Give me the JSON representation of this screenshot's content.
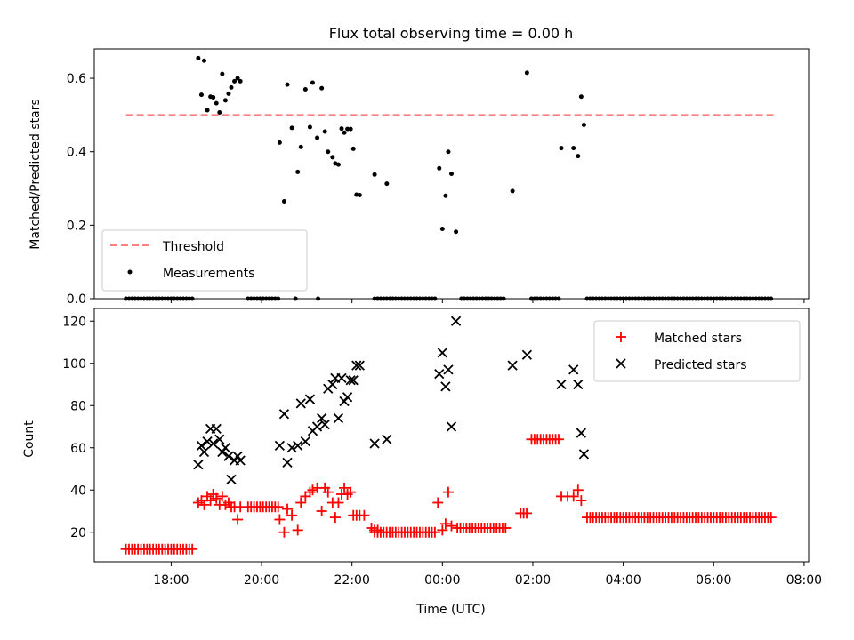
{
  "title": "Flux total observing time = 0.00 h",
  "chart_data": [
    {
      "type": "scatter",
      "ylabel": "Matched/Predicted stars",
      "ylim": [
        0,
        0.68
      ],
      "yticks": [
        "0.0",
        "0.2",
        "0.4",
        "0.6"
      ],
      "ytick_values": [
        0,
        0.2,
        0.4,
        0.6
      ],
      "xlim_hours": [
        16.3,
        32.1
      ],
      "legend_position": "lower-left",
      "threshold": {
        "name": "Threshold",
        "value": 0.5,
        "x_range": [
          17.0,
          31.33
        ],
        "color": "#ff7f7f",
        "style": "dashed"
      },
      "measurements": {
        "name": "Measurements",
        "color": "#000000",
        "x": [
          18.6,
          18.67,
          18.73,
          18.8,
          18.87,
          18.93,
          19.0,
          19.07,
          19.13,
          19.2,
          19.27,
          19.33,
          19.4,
          19.47,
          19.53,
          20.4,
          20.5,
          20.57,
          20.67,
          20.8,
          20.87,
          20.97,
          21.07,
          21.13,
          21.23,
          21.33,
          21.4,
          21.47,
          21.57,
          21.63,
          21.7,
          21.77,
          21.83,
          21.9,
          21.97,
          22.03,
          22.1,
          22.17,
          22.5,
          22.77,
          23.93,
          24.0,
          24.07,
          24.13,
          24.2,
          24.3,
          25.55,
          25.87,
          26.63,
          26.9,
          27.0,
          27.07,
          27.13
        ],
        "y": [
          0.655,
          0.555,
          0.648,
          0.513,
          0.55,
          0.548,
          0.532,
          0.507,
          0.612,
          0.54,
          0.558,
          0.575,
          0.592,
          0.6,
          0.592,
          0.425,
          0.265,
          0.583,
          0.465,
          0.345,
          0.413,
          0.57,
          0.467,
          0.588,
          0.438,
          0.573,
          0.455,
          0.4,
          0.385,
          0.368,
          0.365,
          0.463,
          0.452,
          0.462,
          0.462,
          0.408,
          0.283,
          0.282,
          0.338,
          0.313,
          0.355,
          0.19,
          0.28,
          0.4,
          0.34,
          0.182,
          0.293,
          0.615,
          0.41,
          0.41,
          0.388,
          0.55,
          0.473
        ],
        "zero_segments": [
          [
            17.0,
            18.53
          ],
          [
            19.7,
            20.38
          ],
          [
            20.75,
            20.75
          ],
          [
            21.25,
            21.25
          ],
          [
            22.5,
            23.87
          ],
          [
            24.42,
            25.4
          ],
          [
            25.97,
            26.6
          ],
          [
            27.2,
            31.33
          ]
        ]
      }
    },
    {
      "type": "scatter",
      "xlabel": "Time (UTC)",
      "ylabel": "Count",
      "ylim": [
        6,
        126
      ],
      "yticks": [
        "20",
        "40",
        "60",
        "80",
        "100",
        "120"
      ],
      "ytick_values": [
        20,
        40,
        60,
        80,
        100,
        120
      ],
      "xlim_hours": [
        16.3,
        32.1
      ],
      "xticks": [
        "18:00",
        "20:00",
        "22:00",
        "00:00",
        "02:00",
        "04:00",
        "06:00",
        "08:00"
      ],
      "xtick_hours": [
        18,
        20,
        22,
        24,
        26,
        28,
        30,
        32
      ],
      "legend_position": "upper-right",
      "matched": {
        "name": "Matched stars",
        "color": "#ff0000",
        "flat_segments": [
          [
            17.0,
            18.53,
            12
          ],
          [
            19.7,
            20.38,
            32
          ],
          [
            22.5,
            23.87,
            20
          ],
          [
            24.33,
            25.4,
            22
          ],
          [
            25.73,
            25.9,
            29
          ],
          [
            25.97,
            26.6,
            64
          ],
          [
            27.2,
            31.33,
            27
          ]
        ],
        "x": [
          18.6,
          18.67,
          18.73,
          18.8,
          18.87,
          18.93,
          19.0,
          19.07,
          19.13,
          19.2,
          19.27,
          19.33,
          19.4,
          19.47,
          19.53,
          20.4,
          20.5,
          20.57,
          20.67,
          20.8,
          20.87,
          20.97,
          21.07,
          21.13,
          21.23,
          21.33,
          21.4,
          21.47,
          21.57,
          21.63,
          21.7,
          21.77,
          21.83,
          21.9,
          21.97,
          22.03,
          22.1,
          22.17,
          22.27,
          22.43,
          22.5,
          22.57,
          23.9,
          24.0,
          24.07,
          24.13,
          24.2,
          26.63,
          26.77,
          26.9,
          27.0,
          27.07
        ],
        "y": [
          34,
          35,
          33,
          37,
          35,
          38,
          36,
          33,
          37,
          33,
          34,
          32,
          32,
          26,
          32,
          26,
          20,
          31,
          28,
          21,
          34,
          37,
          39,
          40,
          41,
          30,
          41,
          39,
          34,
          27,
          34,
          38,
          41,
          38,
          39,
          28,
          28,
          28,
          28,
          22,
          21,
          21,
          34,
          21,
          24,
          39,
          23,
          37,
          37,
          37,
          40,
          35
        ]
      },
      "predicted": {
        "name": "Predicted stars",
        "color": "#000000",
        "x": [
          18.6,
          18.67,
          18.73,
          18.8,
          18.87,
          18.93,
          19.0,
          19.07,
          19.13,
          19.2,
          19.27,
          19.33,
          19.4,
          19.47,
          19.53,
          20.4,
          20.5,
          20.57,
          20.67,
          20.8,
          20.87,
          20.97,
          21.07,
          21.13,
          21.23,
          21.33,
          21.4,
          21.47,
          21.57,
          21.63,
          21.7,
          21.77,
          21.83,
          21.9,
          21.97,
          22.03,
          22.1,
          22.17,
          22.5,
          22.77,
          23.93,
          24.0,
          24.07,
          24.13,
          24.2,
          24.3,
          25.55,
          25.87,
          26.63,
          26.9,
          27.0,
          27.07,
          27.13
        ],
        "y": [
          52,
          61,
          58,
          63,
          69,
          62,
          69,
          64,
          58,
          60,
          56,
          45,
          54,
          56,
          54,
          61,
          76,
          53,
          60,
          61,
          81,
          63,
          83,
          68,
          70,
          74,
          71,
          88,
          90,
          93,
          74,
          93,
          82,
          84,
          92,
          92,
          99,
          99,
          62,
          64,
          95,
          105,
          89,
          97,
          70,
          120,
          99,
          104,
          90,
          97,
          90,
          67,
          57
        ]
      }
    }
  ]
}
